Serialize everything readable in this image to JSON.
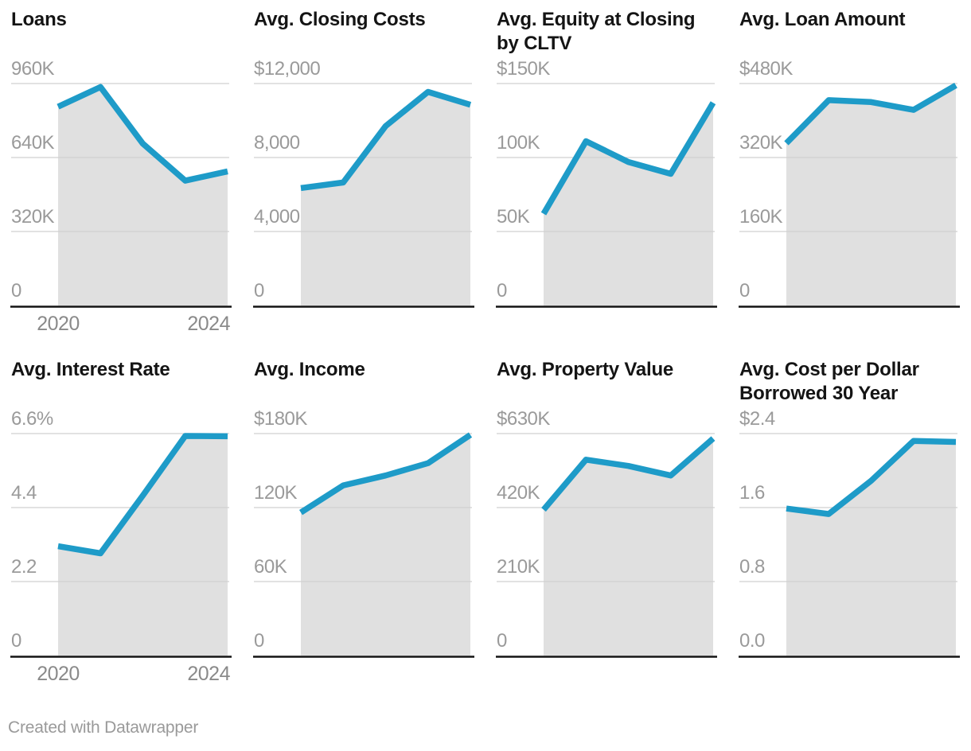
{
  "footer": {
    "attribution": "Created with Datawrapper"
  },
  "style": {
    "line_color": "#1e9bc8",
    "area_color": "#e0e0e0",
    "grid_color": "#d0d0d0",
    "axis_color": "#141414",
    "ytick_color": "#9a9a9a",
    "xtick_color": "#8a8a8a",
    "title_color": "#141414"
  },
  "chart_data": [
    {
      "type": "area",
      "title": "Loans",
      "x": [
        2020,
        2021,
        2022,
        2023,
        2024
      ],
      "values": [
        860000,
        945000,
        700000,
        540000,
        580000
      ],
      "ylim": [
        0,
        960000
      ],
      "ytick_values": [
        960000,
        640000,
        320000,
        0
      ],
      "ytick_labels": [
        "960K",
        "640K",
        "320K",
        "0"
      ],
      "xtick_labels": [
        "2020",
        "2024"
      ],
      "grid": true,
      "legend": "none"
    },
    {
      "type": "area",
      "title": "Avg. Closing Costs",
      "x": [
        2020,
        2021,
        2022,
        2023,
        2024
      ],
      "values": [
        6350,
        6650,
        9700,
        11550,
        10850
      ],
      "ylim": [
        0,
        12000
      ],
      "ytick_values": [
        12000,
        8000,
        4000,
        0
      ],
      "ytick_labels": [
        "$12,000",
        "8,000",
        "4,000",
        "0"
      ],
      "xtick_labels": [],
      "grid": true,
      "legend": "none"
    },
    {
      "type": "area",
      "title": "Avg. Equity at Closing by CLTV",
      "x": [
        2020,
        2021,
        2022,
        2023,
        2024
      ],
      "values": [
        62000,
        111000,
        97000,
        89000,
        137000
      ],
      "ylim": [
        0,
        150000
      ],
      "ytick_values": [
        150000,
        100000,
        50000,
        0
      ],
      "ytick_labels": [
        "$150K",
        "100K",
        "50K",
        "0"
      ],
      "xtick_labels": [],
      "grid": true,
      "legend": "none"
    },
    {
      "type": "area",
      "title": "Avg. Loan Amount",
      "x": [
        2020,
        2021,
        2022,
        2023,
        2024
      ],
      "values": [
        351000,
        444000,
        440000,
        423000,
        476000
      ],
      "ylim": [
        0,
        480000
      ],
      "ytick_values": [
        480000,
        320000,
        160000,
        0
      ],
      "ytick_labels": [
        "$480K",
        "320K",
        "160K",
        "0"
      ],
      "xtick_labels": [],
      "grid": true,
      "legend": "none"
    },
    {
      "type": "area",
      "title": "Avg. Interest Rate",
      "x": [
        2020,
        2021,
        2022,
        2023,
        2024
      ],
      "values": [
        3.25,
        3.04,
        4.76,
        6.53,
        6.52
      ],
      "ylim": [
        0,
        6.6
      ],
      "ytick_values": [
        6.6,
        4.4,
        2.2,
        0
      ],
      "ytick_labels": [
        "6.6%",
        "4.4",
        "2.2",
        "0"
      ],
      "xtick_labels": [
        "2020",
        "2024"
      ],
      "grid": true,
      "legend": "none"
    },
    {
      "type": "area",
      "title": "Avg. Income",
      "x": [
        2020,
        2021,
        2022,
        2023,
        2024
      ],
      "values": [
        116000,
        138000,
        146000,
        156000,
        179000
      ],
      "ylim": [
        0,
        180000
      ],
      "ytick_values": [
        180000,
        120000,
        60000,
        0
      ],
      "ytick_labels": [
        "$180K",
        "120K",
        "60K",
        "0"
      ],
      "xtick_labels": [],
      "grid": true,
      "legend": "none"
    },
    {
      "type": "area",
      "title": "Avg. Property Value",
      "x": [
        2020,
        2021,
        2022,
        2023,
        2024
      ],
      "values": [
        414000,
        556000,
        538000,
        511000,
        616000
      ],
      "ylim": [
        0,
        630000
      ],
      "ytick_values": [
        630000,
        420000,
        210000,
        0
      ],
      "ytick_labels": [
        "$630K",
        "420K",
        "210K",
        "0"
      ],
      "xtick_labels": [],
      "grid": true,
      "legend": "none"
    },
    {
      "type": "area",
      "title": "Avg. Cost per Dollar Borrowed 30 Year",
      "x": [
        2020,
        2021,
        2022,
        2023,
        2024
      ],
      "values": [
        1.59,
        1.53,
        1.89,
        2.32,
        2.31
      ],
      "ylim": [
        0,
        2.4
      ],
      "ytick_values": [
        2.4,
        1.6,
        0.8,
        0
      ],
      "ytick_labels": [
        "$2.4",
        "1.6",
        "0.8",
        "0.0"
      ],
      "xtick_labels": [],
      "grid": true,
      "legend": "none"
    }
  ]
}
